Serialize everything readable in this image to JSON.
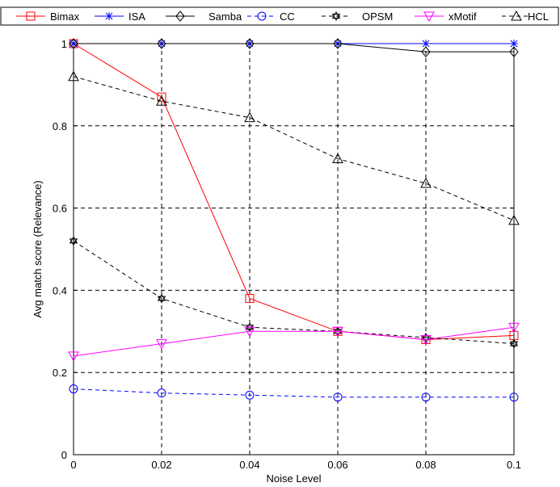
{
  "chart_data": {
    "type": "line",
    "xlabel": "Noise Level",
    "ylabel": "Avg match score (Relevance)",
    "xlim": [
      0,
      0.1
    ],
    "ylim": [
      0,
      1
    ],
    "x_ticks": [
      "0",
      "0.02",
      "0.04",
      "0.06",
      "0.08",
      "0.1"
    ],
    "y_ticks": [
      "0",
      "0.2",
      "0.4",
      "0.6",
      "0.8",
      "1"
    ],
    "grid": true,
    "legend_position": "top",
    "x": [
      0,
      0.02,
      0.04,
      0.06,
      0.08,
      0.1
    ],
    "series": [
      {
        "name": "Bimax",
        "color": "#ff0000",
        "dash": "solid",
        "marker": "square",
        "values": [
          1.0,
          0.87,
          0.38,
          0.3,
          0.28,
          0.29
        ]
      },
      {
        "name": "ISA",
        "color": "#0000ff",
        "dash": "solid",
        "marker": "asterisk",
        "values": [
          1.0,
          1.0,
          1.0,
          1.0,
          1.0,
          1.0
        ]
      },
      {
        "name": "Samba",
        "color": "#000000",
        "dash": "solid",
        "marker": "diamond",
        "values": [
          1.0,
          1.0,
          1.0,
          1.0,
          0.98,
          0.98
        ]
      },
      {
        "name": "CC",
        "color": "#0000ff",
        "dash": "dashed",
        "marker": "circle",
        "values": [
          0.16,
          0.15,
          0.145,
          0.14,
          0.14,
          0.14
        ]
      },
      {
        "name": "OPSM",
        "color": "#000000",
        "dash": "dashed",
        "marker": "hexagram",
        "values": [
          0.52,
          0.38,
          0.31,
          0.3,
          0.285,
          0.27
        ]
      },
      {
        "name": "xMotif",
        "color": "#ff00ff",
        "dash": "solid",
        "marker": "triangle-down",
        "values": [
          0.24,
          0.27,
          0.3,
          0.3,
          0.28,
          0.31
        ]
      },
      {
        "name": "HCL",
        "color": "#000000",
        "dash": "dashed",
        "marker": "triangle-up",
        "values": [
          0.92,
          0.86,
          0.82,
          0.72,
          0.66,
          0.57
        ]
      }
    ]
  }
}
